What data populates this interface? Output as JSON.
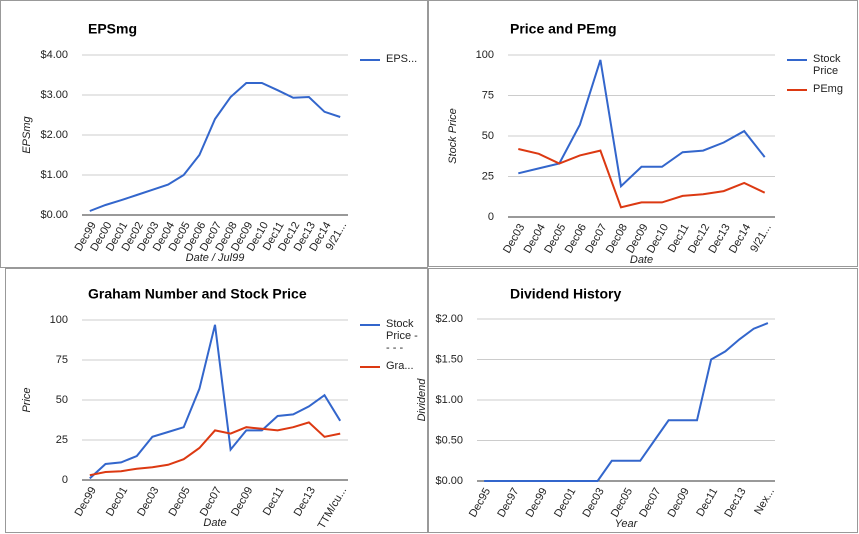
{
  "chart_data": [
    {
      "type": "line",
      "title": "EPSmg",
      "y_label": "EPSmg",
      "x_label": "Date / Jul99",
      "legend": "right",
      "grid": true,
      "categories": [
        "Dec99",
        "Dec00",
        "Dec01",
        "Dec02",
        "Dec03",
        "Dec04",
        "Dec05",
        "Dec06",
        "Dec07",
        "Dec08",
        "Dec09",
        "Dec10",
        "Dec11",
        "Dec12",
        "Dec13",
        "Dec14",
        "9/21..."
      ],
      "series": [
        {
          "name": "EPS...",
          "color": "#3366cc",
          "values": [
            0.1,
            0.25,
            0.37,
            0.5,
            0.63,
            0.76,
            1.0,
            1.5,
            2.4,
            2.95,
            3.3,
            3.3,
            3.12,
            2.93,
            2.95,
            2.58,
            2.45
          ]
        }
      ],
      "ylim": [
        0,
        4
      ],
      "yticks": [
        {
          "value": 0,
          "label": "$0.00"
        },
        {
          "value": 1,
          "label": "$1.00"
        },
        {
          "value": 2,
          "label": "$2.00"
        },
        {
          "value": 3,
          "label": "$3.00"
        },
        {
          "value": 4,
          "label": "$4.00"
        }
      ]
    },
    {
      "type": "line",
      "title": "Price and PEmg",
      "y_label": "Stock Price",
      "x_label": "Date",
      "legend": "right",
      "grid": true,
      "categories": [
        "Dec03",
        "Dec04",
        "Dec05",
        "Dec06",
        "Dec07",
        "Dec08",
        "Dec09",
        "Dec10",
        "Dec11",
        "Dec12",
        "Dec13",
        "Dec14",
        "9/21..."
      ],
      "series": [
        {
          "name": "Stock Price",
          "color": "#3366cc",
          "values": [
            27,
            30,
            33,
            57,
            97,
            19,
            31,
            31,
            40,
            41,
            46,
            53,
            37
          ]
        },
        {
          "name": "PEmg",
          "color": "#dc3912",
          "values": [
            42,
            39,
            33,
            38,
            41,
            6,
            9,
            9,
            13,
            14,
            16,
            21,
            15
          ]
        }
      ],
      "ylim": [
        0,
        100
      ],
      "yticks": [
        0,
        25,
        50,
        75,
        100
      ]
    },
    {
      "type": "line",
      "title": "Graham Number and Stock Price",
      "y_label": "Price",
      "x_label": "Date",
      "legend": "right",
      "grid": true,
      "categories": [
        "Dec99",
        null,
        "Dec01",
        null,
        "Dec03",
        null,
        "Dec05",
        null,
        "Dec07",
        null,
        "Dec09",
        null,
        "Dec11",
        null,
        "Dec13",
        null,
        "TTM/cu..."
      ],
      "series": [
        {
          "name": "Stock Price - - - -",
          "color": "#3366cc",
          "values": [
            1,
            10,
            11,
            15,
            27,
            30,
            33,
            57,
            97,
            19,
            31,
            31,
            40,
            41,
            46,
            53,
            37
          ]
        },
        {
          "name": "Gra...",
          "color": "#dc3912",
          "values": [
            3,
            5,
            5.5,
            7,
            8,
            9.5,
            13,
            20,
            31,
            29,
            33,
            32,
            31,
            33,
            36,
            27,
            29
          ]
        }
      ],
      "ylim": [
        0,
        100
      ],
      "yticks": [
        0,
        25,
        50,
        75,
        100
      ]
    },
    {
      "type": "line",
      "title": "Dividend History",
      "y_label": "Dividend",
      "x_label": "Year",
      "grid": true,
      "categories": [
        "Dec95",
        null,
        "Dec97",
        null,
        "Dec99",
        null,
        "Dec01",
        null,
        "Dec03",
        null,
        "Dec05",
        null,
        "Dec07",
        null,
        "Dec09",
        null,
        "Dec11",
        null,
        "Dec13",
        null,
        "Nex..."
      ],
      "series": [
        {
          "name": "Dividend",
          "color": "#3366cc",
          "values": [
            0,
            0,
            0,
            0,
            0,
            0,
            0,
            0,
            0,
            0.25,
            0.25,
            0.25,
            0.5,
            0.75,
            0.75,
            0.75,
            1.5,
            1.6,
            1.75,
            1.88,
            1.95
          ]
        }
      ],
      "ylim": [
        0,
        2
      ],
      "yticks": [
        {
          "value": 0,
          "label": "$0.00"
        },
        {
          "value": 0.5,
          "label": "$0.50"
        },
        {
          "value": 1,
          "label": "$1.00"
        },
        {
          "value": 1.5,
          "label": "$1.50"
        },
        {
          "value": 2,
          "label": "$2.00"
        }
      ]
    }
  ]
}
